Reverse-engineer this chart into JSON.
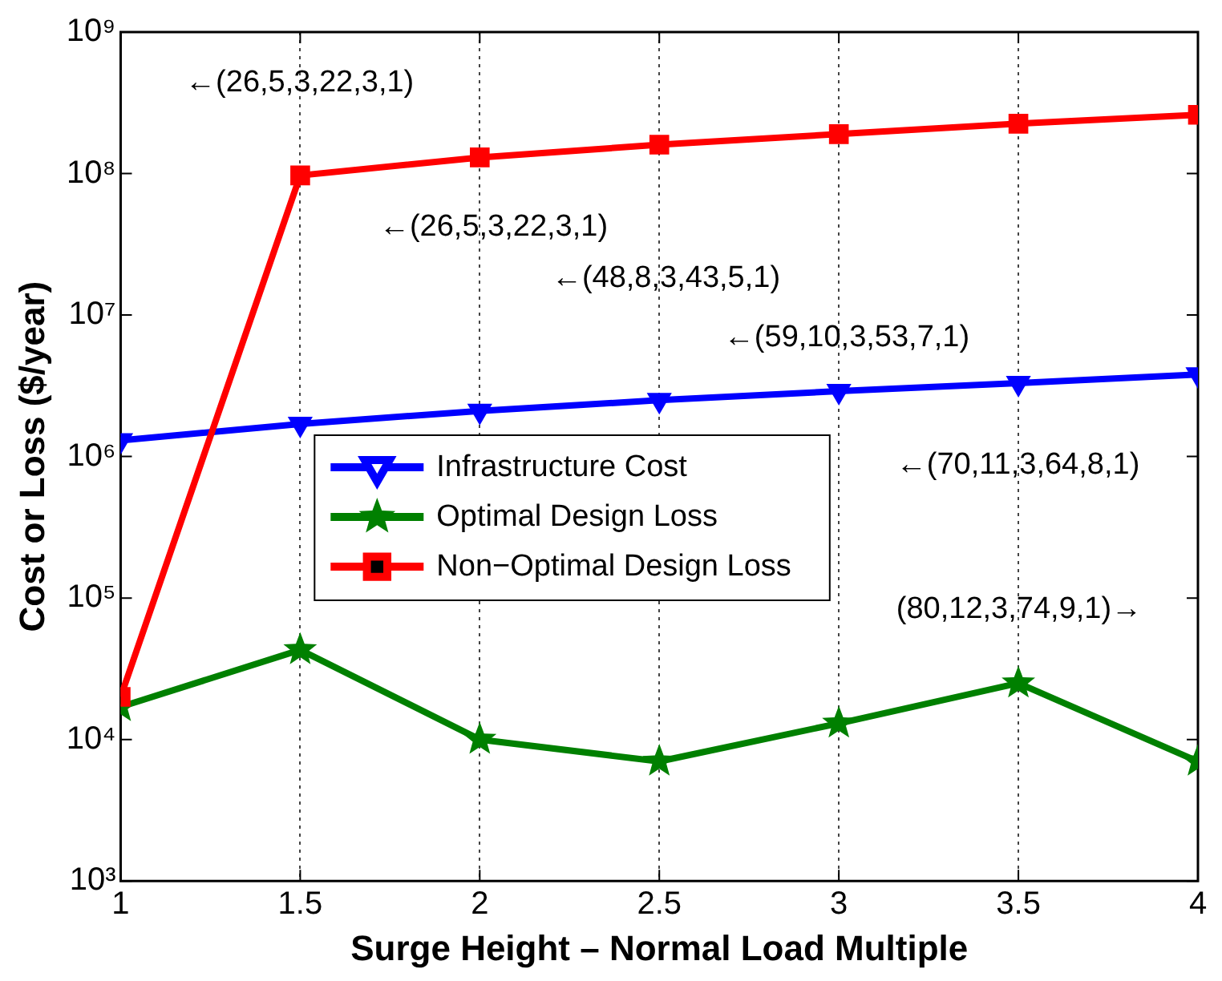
{
  "chart_data": {
    "type": "line",
    "xlabel": "Surge Height – Normal Load Multiple",
    "ylabel": "Cost or Loss ($/year)",
    "x": [
      1,
      1.5,
      2,
      2.5,
      3,
      3.5,
      4
    ],
    "series": [
      {
        "name": "Infrastructure Cost",
        "color": "#0000ff",
        "marker": "triangle",
        "values": [
          1300000,
          1700000,
          2100000,
          2500000,
          2900000,
          3300000,
          3800000
        ]
      },
      {
        "name": "Optimal Design Loss",
        "color": "#008000",
        "marker": "star",
        "values": [
          17000,
          43000,
          10000,
          7000,
          13000,
          25000,
          7000
        ]
      },
      {
        "name": "Non−Optimal Design Loss",
        "color": "#ff0000",
        "marker": "square",
        "values": [
          20000,
          97000000,
          130000000,
          160000000,
          190000000,
          225000000,
          260000000
        ]
      }
    ],
    "log": "y",
    "xlim": [
      1,
      4
    ],
    "xticks": [
      1,
      1.5,
      2,
      2.5,
      3,
      3.5,
      4
    ],
    "ylim": [
      1000,
      1000000000
    ],
    "yticks": [
      {
        "value": 1000,
        "label": "10³"
      },
      {
        "value": 10000,
        "label": "10⁴"
      },
      {
        "value": 100000,
        "label": "10⁵"
      },
      {
        "value": 1000000,
        "label": "10⁶"
      },
      {
        "value": 10000000,
        "label": "10⁷"
      },
      {
        "value": 100000000,
        "label": "10⁸"
      },
      {
        "value": 1000000000,
        "label": "10⁹"
      }
    ],
    "grid": "x",
    "legend": "center left",
    "line_style": "solid",
    "annotations": [
      "←(26,5,3,22,3,1)",
      "←(26,5,3,22,3,1)",
      "←(48,8,3,43,5,1)",
      "←(59,10,3,53,7,1)",
      "←(70,11,3,64,8,1)",
      "(80,12,3,74,9,1)→"
    ]
  }
}
